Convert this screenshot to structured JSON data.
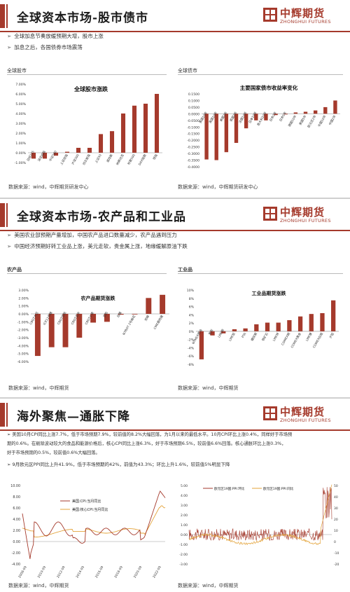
{
  "brand": {
    "logo_cn": "中辉期货",
    "logo_en": "ZHONGHUI FUTURES",
    "accent_color": "#a53a2c"
  },
  "slide1": {
    "title": "全球资本市场-股市债市",
    "bullets": [
      "全球加息节奏放缓预期大增，股市上涨",
      "加息之后，各国债券市场震荡"
    ],
    "left_label": "全球股市",
    "right_label": "全球债市",
    "source_left": "数据来源：wind，中辉期货研发中心",
    "source_right": "数据来源：wind，中辉期货研发中心"
  },
  "slide2": {
    "title": "全球资本市场-农产品和工业品",
    "bullets": [
      "美国农业部预期产量增加，中国农产品进口数量减少，农产品遇到压力",
      "中国经济预期好转工业品上涨，美元走软，贵金属上涨，地缘缓解原油下跌"
    ],
    "left_label": "农产品",
    "right_label": "工业品",
    "source_left": "数据来源：wind，中辉期货",
    "source_right": "数据来源：wind，中辉期货"
  },
  "slide3": {
    "title": "海外聚焦—通胀下降",
    "bullets": [
      "美国10月CPI同比上涨7.7%，低于市场预期7.9%，较前值的8.2%大幅回落，为1月以来的最低水平。10月CPI环比上涨0.4%，同样好于市场预",
      "期的0.6%。在剔除波动较大的食品和能源价格后，核心CPI同比上涨6.3%，好于市场预期6.5%，较前值6.6%回落。核心通胀环比上涨0.3%，",
      "好于市场预期的0.5%，较前值0.6%大幅回落。",
      "9月欧元区PPI同比上升41.9%，低于市场预期的42%，前值为43.3%；环比上升1.6%，较前值5%明显下降"
    ],
    "source_left": "数据来源：wind，中辉期货",
    "source_right": "数据来源：wind，中辉期货"
  },
  "chart_data": [
    {
      "type": "bar",
      "title": "全球股市涨跌",
      "categories": [
        "日经225",
        "深证成指",
        "中证500",
        "上证综指",
        "沪深300",
        "创业板指",
        "上证50",
        "道琼斯",
        "纳斯达克",
        "标普500",
        "DAX指数",
        "恒指"
      ],
      "values": [
        -0.6,
        -0.6,
        -0.3,
        0.1,
        0.5,
        0.5,
        1.9,
        2.2,
        4.0,
        4.8,
        5.0,
        6.0
      ],
      "ylim": [
        -1.0,
        7.0
      ],
      "yticks": [
        "7.00%",
        "6.00%",
        "5.00%",
        "4.00%",
        "3.00%",
        "2.00%",
        "1.00%",
        "0.00%",
        "-1.00%"
      ],
      "color": "#a53a2c"
    },
    {
      "type": "bar",
      "title": "主要国家债市收益率变化",
      "categories": [
        "美国10年",
        "英国10年",
        "美国2年",
        "英国2年",
        "法国10年",
        "日本10年",
        "意大利10年",
        "日本2年",
        "日本5年",
        "德国10年",
        "美国5年",
        "欧元区2年",
        "中国10年",
        "中国2年"
      ],
      "values": [
        -0.345,
        -0.35,
        -0.29,
        -0.22,
        -0.11,
        -0.05,
        -0.05,
        -0.01,
        -0.005,
        0.01,
        0.015,
        0.025,
        0.05,
        0.1
      ],
      "ylim": [
        -0.4,
        0.15
      ],
      "yticks": [
        "0.1500",
        "0.1000",
        "0.0500",
        "0.0000",
        "-0.0500",
        "-0.1000",
        "-0.1500",
        "-0.2000",
        "-0.2500",
        "-0.3000",
        "-0.3500",
        "-0.4000"
      ],
      "color": "#a53a2c"
    },
    {
      "type": "bar",
      "title": "农产品期货涨跌",
      "categories": [
        "CBOT大豆",
        "ICE11号糖",
        "CBOT豆粕",
        "CBOT玉米",
        "CBOT小麦",
        "豆粕",
        "白糖",
        "NYBOT 2号棉花",
        "郑棉",
        "CME瘦肉猪"
      ],
      "values": [
        -5.3,
        -4.2,
        -4.2,
        -3.0,
        -1.1,
        -1.0,
        -0.1,
        0.0,
        2.0,
        2.4
      ],
      "ylim": [
        -6,
        3
      ],
      "yticks": [
        "3.00%",
        "2.00%",
        "1.00%",
        "0.00%",
        "-1.00%",
        "-2.00%",
        "-3.00%",
        "-4.00%",
        "-5.00%",
        "-6.00%"
      ],
      "color": "#a53a2c"
    },
    {
      "type": "bar",
      "title": "工业品期货涨跌",
      "categories": [
        "NYMEX原油",
        "焦炭",
        "LME铜",
        "LME铝",
        "PTA",
        "螺纹钢",
        "铁矿石",
        "LME锌",
        "COMEX铜",
        "COMEX黄金",
        "LME镍",
        "COMEX白银",
        "沪铝"
      ],
      "values": [
        -6.8,
        -1.0,
        -0.5,
        0.5,
        0.7,
        1.7,
        2.1,
        2.1,
        2.7,
        3.6,
        4.2,
        4.4,
        7.5
      ],
      "ylim": [
        -8,
        10
      ],
      "yticks": [
        "10%",
        "8%",
        "6%",
        "4%",
        "2%",
        "0%",
        "-2%",
        "-4%",
        "-6%",
        "-8%"
      ],
      "color": "#a53a2c"
    },
    {
      "type": "line",
      "series": [
        {
          "name": "美国:CPI:当月同比",
          "color": "#a53a2c"
        },
        {
          "name": "美国:核心CPI:当月同比",
          "color": "#e3a33a"
        }
      ],
      "ylim": [
        -4.0,
        10.0
      ],
      "yticks": [
        "10.00",
        "8.00",
        "6.00",
        "4.00",
        "2.00",
        "0.00",
        "-2.00",
        "-4.00"
      ],
      "xticks": [
        "2008-09",
        "2010-09",
        "2012-09",
        "2014-09",
        "2016-09",
        "2018-09",
        "2020-09",
        "2022-09"
      ]
    },
    {
      "type": "line",
      "series": [
        {
          "name": "欧元区19国:PPI:环比",
          "color": "#a53a2c"
        },
        {
          "name": "欧元区19国:PPI:同比",
          "color": "#e3a33a"
        }
      ],
      "ylim_left": [
        -3.0,
        5.0
      ],
      "ylim_right": [
        -20,
        50
      ],
      "yticks_left": [
        "5.00",
        "4.00",
        "3.00",
        "2.00",
        "1.00",
        "0.00",
        "-1.00",
        "-2.00",
        "-3.00"
      ],
      "yticks_right": [
        "50",
        "40",
        "30",
        "20",
        "10",
        "0",
        "-10",
        "-20"
      ]
    }
  ]
}
